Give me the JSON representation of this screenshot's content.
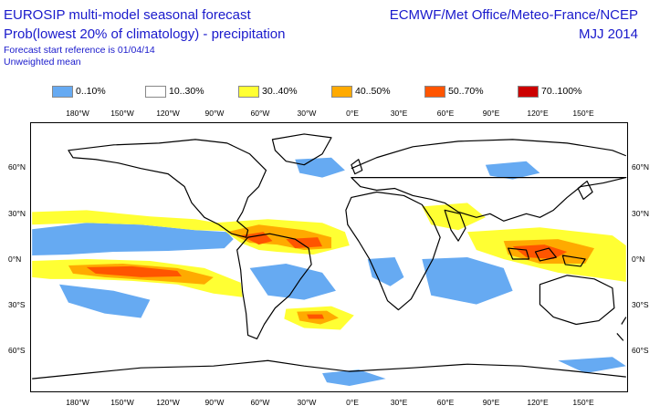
{
  "header": {
    "title": "EUROSIP multi-model seasonal forecast",
    "subtitle": "Prob(lowest 20% of climatology) - precipitation",
    "start_ref": "Forecast start reference is 01/04/14",
    "mean_type": "Unweighted mean",
    "centres": "ECMWF/Met Office/Meteo-France/NCEP",
    "period": "MJJ 2014"
  },
  "legend": [
    {
      "label": "0..10%",
      "color": "#66aaf2"
    },
    {
      "label": "10..30%",
      "color": "#ffffff"
    },
    {
      "label": "30..40%",
      "color": "#ffff33"
    },
    {
      "label": "40..50%",
      "color": "#ffaa00"
    },
    {
      "label": "50..70%",
      "color": "#ff5500"
    },
    {
      "label": "70..100%",
      "color": "#cc0000"
    }
  ],
  "axes": {
    "lon_top": [
      "180°W",
      "150°W",
      "120°W",
      "90°W",
      "60°W",
      "30°W",
      "0°E",
      "30°E",
      "60°E",
      "90°E",
      "120°E",
      "150°E"
    ],
    "lon_bottom": [
      "180°W",
      "150°W",
      "120°W",
      "90°W",
      "60°W",
      "30°W",
      "0°E",
      "30°E",
      "60°E",
      "90°E",
      "120°E",
      "150°E"
    ],
    "lat_left": [
      "60°N",
      "30°N",
      "0°N",
      "30°S",
      "60°S"
    ],
    "lat_right": [
      "60°N",
      "30°N",
      "0°N",
      "30°S",
      "60°S"
    ]
  }
}
